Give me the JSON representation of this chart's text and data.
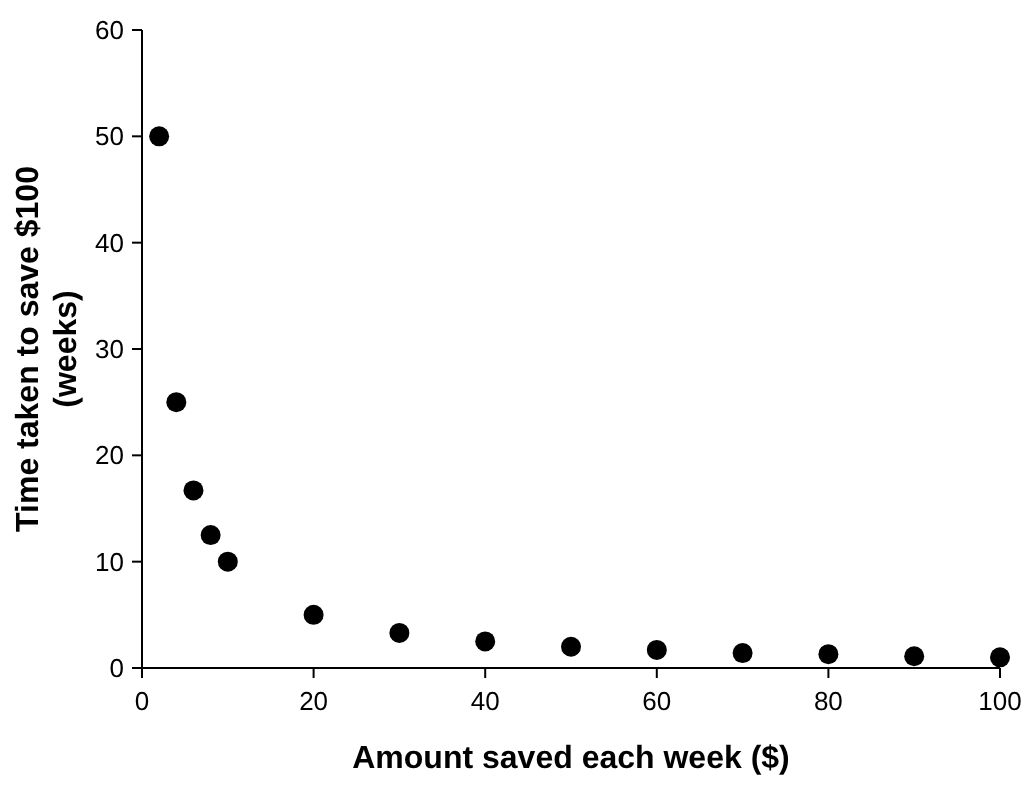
{
  "chart_data": {
    "type": "scatter",
    "xlabel": "Amount saved each week ($)",
    "ylabel": "Time taken to save $100\n(weeks)",
    "x": [
      2,
      4,
      6,
      8,
      10,
      20,
      30,
      40,
      50,
      60,
      70,
      80,
      90,
      100
    ],
    "values": [
      50,
      25,
      16.7,
      12.5,
      10,
      5,
      3.3,
      2.5,
      2,
      1.7,
      1.4,
      1.3,
      1.1,
      1
    ],
    "color": "#000000",
    "marker": "circle",
    "grid": false,
    "xlim": [
      0,
      100
    ],
    "xticks": [
      0,
      20,
      40,
      60,
      80,
      100
    ],
    "ylim": [
      0,
      60
    ],
    "yticks": [
      0,
      10,
      20,
      30,
      40,
      50,
      60
    ]
  }
}
